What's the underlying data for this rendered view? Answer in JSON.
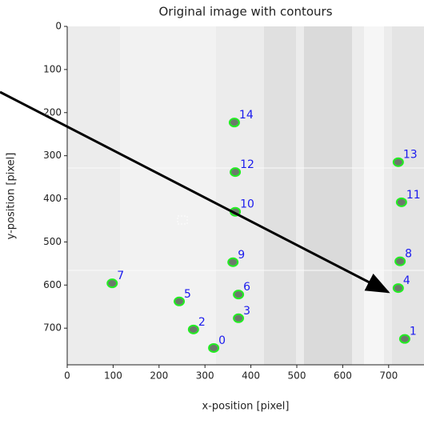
{
  "chart_data": {
    "type": "image_contours",
    "title": "Original image with contours",
    "x_label": "x-position [pixel]",
    "y_label": "y-position [pixel]",
    "xlim": [
      0,
      777
    ],
    "ylim": [
      0,
      785
    ],
    "invert_y": true,
    "xticks": [
      0,
      100,
      200,
      300,
      400,
      500,
      600,
      700
    ],
    "yticks": [
      0,
      100,
      200,
      300,
      400,
      500,
      600,
      700
    ],
    "contour_color": "#22ee22",
    "label_color": "#1a1aee",
    "points": [
      {
        "label": "0",
        "x": 319,
        "y": 746
      },
      {
        "label": "1",
        "x": 735,
        "y": 725
      },
      {
        "label": "2",
        "x": 275,
        "y": 703
      },
      {
        "label": "3",
        "x": 373,
        "y": 677
      },
      {
        "label": "4",
        "x": 721,
        "y": 607
      },
      {
        "label": "5",
        "x": 244,
        "y": 638
      },
      {
        "label": "6",
        "x": 373,
        "y": 622
      },
      {
        "label": "7",
        "x": 98,
        "y": 596
      },
      {
        "label": "8",
        "x": 725,
        "y": 545
      },
      {
        "label": "9",
        "x": 361,
        "y": 547
      },
      {
        "label": "10",
        "x": 366,
        "y": 430
      },
      {
        "label": "11",
        "x": 728,
        "y": 408
      },
      {
        "label": "12",
        "x": 366,
        "y": 338
      },
      {
        "label": "13",
        "x": 721,
        "y": 315
      },
      {
        "label": "14",
        "x": 364,
        "y": 223
      }
    ]
  }
}
